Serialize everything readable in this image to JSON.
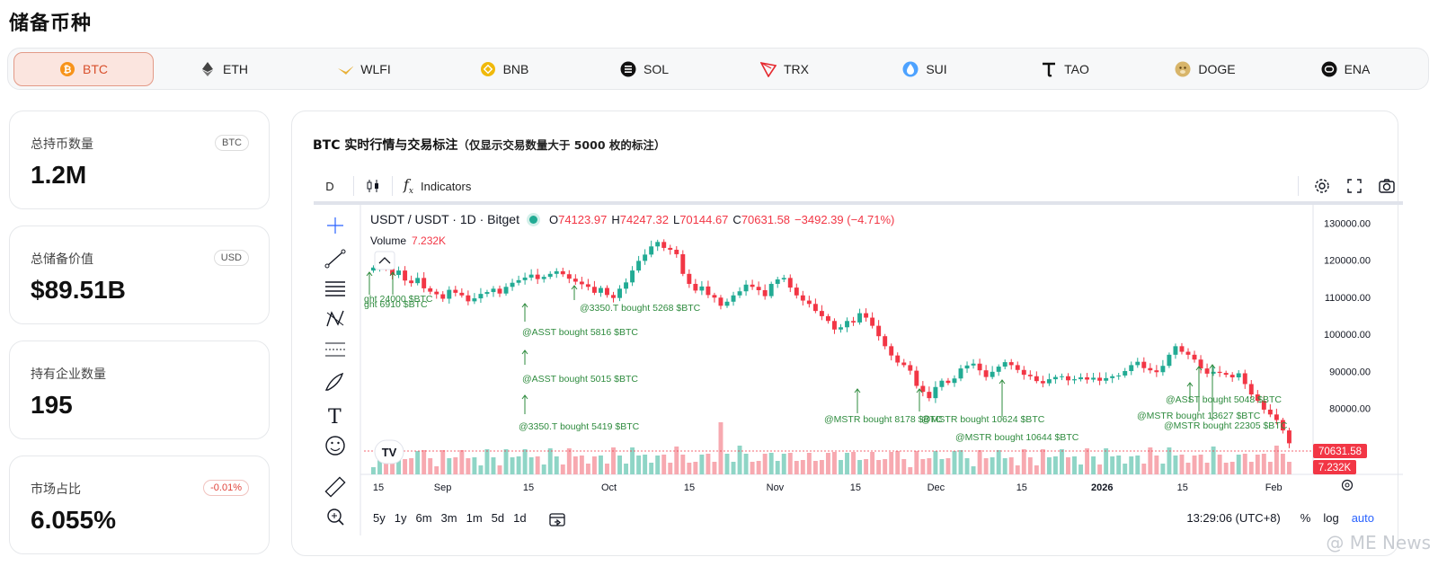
{
  "page_title": "储备币种",
  "tabs": [
    {
      "label": "BTC",
      "icon": "btc-icon",
      "active": true
    },
    {
      "label": "ETH",
      "icon": "eth-icon"
    },
    {
      "label": "WLFI",
      "icon": "wlfi-icon"
    },
    {
      "label": "BNB",
      "icon": "bnb-icon"
    },
    {
      "label": "SOL",
      "icon": "sol-icon"
    },
    {
      "label": "TRX",
      "icon": "trx-icon"
    },
    {
      "label": "SUI",
      "icon": "sui-icon"
    },
    {
      "label": "TAO",
      "icon": "tao-icon"
    },
    {
      "label": "DOGE",
      "icon": "doge-icon"
    },
    {
      "label": "ENA",
      "icon": "ena-icon"
    }
  ],
  "stats": [
    {
      "label": "总持币数量",
      "badge": "BTC",
      "value": "1.2M"
    },
    {
      "label": "总储备价值",
      "badge": "USD",
      "value": "$89.51B"
    },
    {
      "label": "持有企业数量",
      "badge": "",
      "value": "195"
    },
    {
      "label": "市场占比",
      "badge": "-0.01%",
      "value": "6.055%"
    }
  ],
  "chart_card": {
    "title": "BTC 实时行情与交易标注",
    "subtitle": "（仅显示交易数量大于 5000 枚的标注）"
  },
  "tv": {
    "interval": "D",
    "indicators_label": "Indicators",
    "symbol": "USDT / USDT · 1D · Bitget",
    "ohlc": {
      "o_label": "O",
      "o": "74123.97",
      "h_label": "H",
      "h": "74247.32",
      "l_label": "L",
      "l": "70144.67",
      "c_label": "C",
      "c": "70631.58",
      "change": "−3492.39 (−4.71%)"
    },
    "volume_label": "Volume",
    "volume_value": "7.232K",
    "last_price_tag": "70631.58",
    "volume_tag": "7.232K",
    "timeframes": [
      "5y",
      "1y",
      "6m",
      "3m",
      "1m",
      "5d",
      "1d"
    ],
    "clock": "13:29:06 (UTC+8)",
    "scale_percent": "%",
    "scale_log": "log",
    "scale_auto": "auto"
  },
  "chart_data": {
    "type": "candlestick",
    "y_axis_ticks": [
      "130000.00",
      "120000.00",
      "110000.00",
      "100000.00",
      "90000.00",
      "80000.00"
    ],
    "ylim": [
      70000,
      132000
    ],
    "x_axis_ticks": [
      "15",
      "Sep",
      "15",
      "Oct",
      "15",
      "Nov",
      "15",
      "Dec",
      "15",
      "2026",
      "15",
      "Feb"
    ],
    "close_series": [
      118000,
      119500,
      117800,
      116000,
      117200,
      114500,
      113800,
      115200,
      112400,
      111500,
      110800,
      109600,
      112000,
      111200,
      110500,
      108900,
      109700,
      110900,
      111400,
      112300,
      111000,
      112800,
      113900,
      114600,
      115300,
      116100,
      114900,
      115500,
      116300,
      117000,
      116200,
      115000,
      114200,
      113500,
      112800,
      111200,
      112500,
      110600,
      109800,
      112300,
      114000,
      117200,
      119800,
      121500,
      123700,
      124900,
      123300,
      122800,
      121600,
      116300,
      113600,
      111800,
      112900,
      110600,
      109900,
      107700,
      108800,
      110500,
      111600,
      113400,
      112800,
      111900,
      110300,
      113600,
      114800,
      115200,
      112600,
      110500,
      109100,
      108200,
      106300,
      104900,
      103600,
      101300,
      101900,
      103600,
      103200,
      105700,
      104500,
      102300,
      99500,
      96800,
      94300,
      92400,
      91700,
      90200,
      86100,
      84500,
      82800,
      85800,
      87500,
      86900,
      88100,
      90800,
      91600,
      92100,
      90300,
      88500,
      89900,
      91300,
      92500,
      91700,
      90400,
      89100,
      88700,
      87400,
      86800,
      87900,
      88500,
      88700,
      87600,
      87900,
      88400,
      87800,
      88300,
      87500,
      88200,
      88700,
      88900,
      90100,
      91700,
      92600,
      90900,
      90300,
      89800,
      91500,
      94500,
      96800,
      95300,
      94500,
      93200,
      90800,
      89400,
      89900,
      89600,
      89100,
      88400,
      89500,
      86600,
      83800,
      82100,
      79700,
      78400,
      76900,
      74100,
      70631
    ],
    "volume_spike_index": 55,
    "annotations": [
      "@3350.T bought 5268 $BTC",
      "@ASST bought 5816 $BTC",
      "@ASST bought 5015 $BTC",
      "@3350.T bought 5419 $BTC",
      "@MSTR bought 8178 $BTC",
      "@MSTR bought 10624 $BTC",
      "@MSTR bought 10644 $BTC",
      "@ASST bought 5048 $BTC",
      "@MSTR bought 13627 $BTC",
      "@MSTR bought 22305 $BTC"
    ],
    "partial_annotations": [
      "ght 24000 $BTC",
      "ght 6910 $BTC"
    ]
  },
  "watermark": "@ ME News",
  "colors": {
    "up": "#22ab94",
    "down": "#f23645",
    "accent": "#d8502c",
    "annotation": "#2e8b3e"
  }
}
